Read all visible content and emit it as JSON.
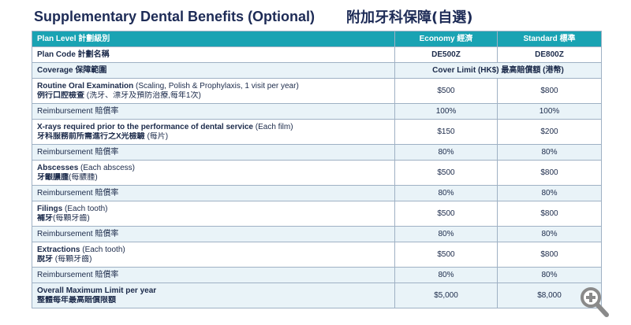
{
  "header": {
    "title_en": "Supplementary Dental Benefits (Optional)",
    "title_zh": "附加牙科保障(自選)"
  },
  "table": {
    "header_row": {
      "label": "Plan Level 計劃級別",
      "economy": "Economy 經濟",
      "standard": "Standard 標準"
    },
    "plan_code_row": {
      "label": "Plan Code 計劃名稱",
      "economy": "DE500Z",
      "standard": "DE800Z"
    },
    "coverage_row": {
      "label": "Coverage 保障範圍",
      "value": "Cover Limit (HK$) 最高賠償額 (港幣)"
    },
    "rows": [
      {
        "en_bold": "Routine Oral Examination",
        "en_rest": " (Scaling, Polish & Prophylaxis, 1 visit per year)",
        "zh_bold": "例行口腔檢查",
        "zh_rest": " (洗牙、漂牙及預防治療,每年1次)",
        "economy": "$500",
        "standard": "$800",
        "reimb_label": "Reimbursement 賠償率",
        "reimb_economy": "100%",
        "reimb_standard": "100%"
      },
      {
        "en_bold": "X-rays required prior to the performance of dental service",
        "en_rest": " (Each film)",
        "zh_bold": "牙科服務前所需進行之X光檢驗",
        "zh_rest": " (每片)",
        "economy": "$150",
        "standard": "$200",
        "reimb_label": "Reimbursement 賠償率",
        "reimb_economy": "80%",
        "reimb_standard": "80%"
      },
      {
        "en_bold": "Abscesses",
        "en_rest": " (Each abscess)",
        "zh_bold": "牙齦膿腫",
        "zh_rest": "(每膿腫)",
        "economy": "$500",
        "standard": "$800",
        "reimb_label": "Reimbursement 賠償率",
        "reimb_economy": "80%",
        "reimb_standard": "80%"
      },
      {
        "en_bold": "Filings",
        "en_rest": " (Each tooth)",
        "zh_bold": "補牙",
        "zh_rest": "(每顆牙齒)",
        "economy": "$500",
        "standard": "$800",
        "reimb_label": "Reimbursement 賠償率",
        "reimb_economy": "80%",
        "reimb_standard": "80%"
      },
      {
        "en_bold": "Extractions",
        "en_rest": " (Each tooth)",
        "zh_bold": "脫牙",
        "zh_rest": " (每顆牙齒)",
        "economy": "$500",
        "standard": "$800",
        "reimb_label": "Reimbursement 賠償率",
        "reimb_economy": "80%",
        "reimb_standard": "80%"
      }
    ],
    "total_row": {
      "en_bold": "Overall Maximum Limit per year",
      "zh_bold": "整體每年最高賠償限額",
      "economy": "$5,000",
      "standard": "$8,000"
    }
  },
  "zoom": {
    "icon": "zoom-in-icon",
    "color": "#8a8a8a"
  }
}
